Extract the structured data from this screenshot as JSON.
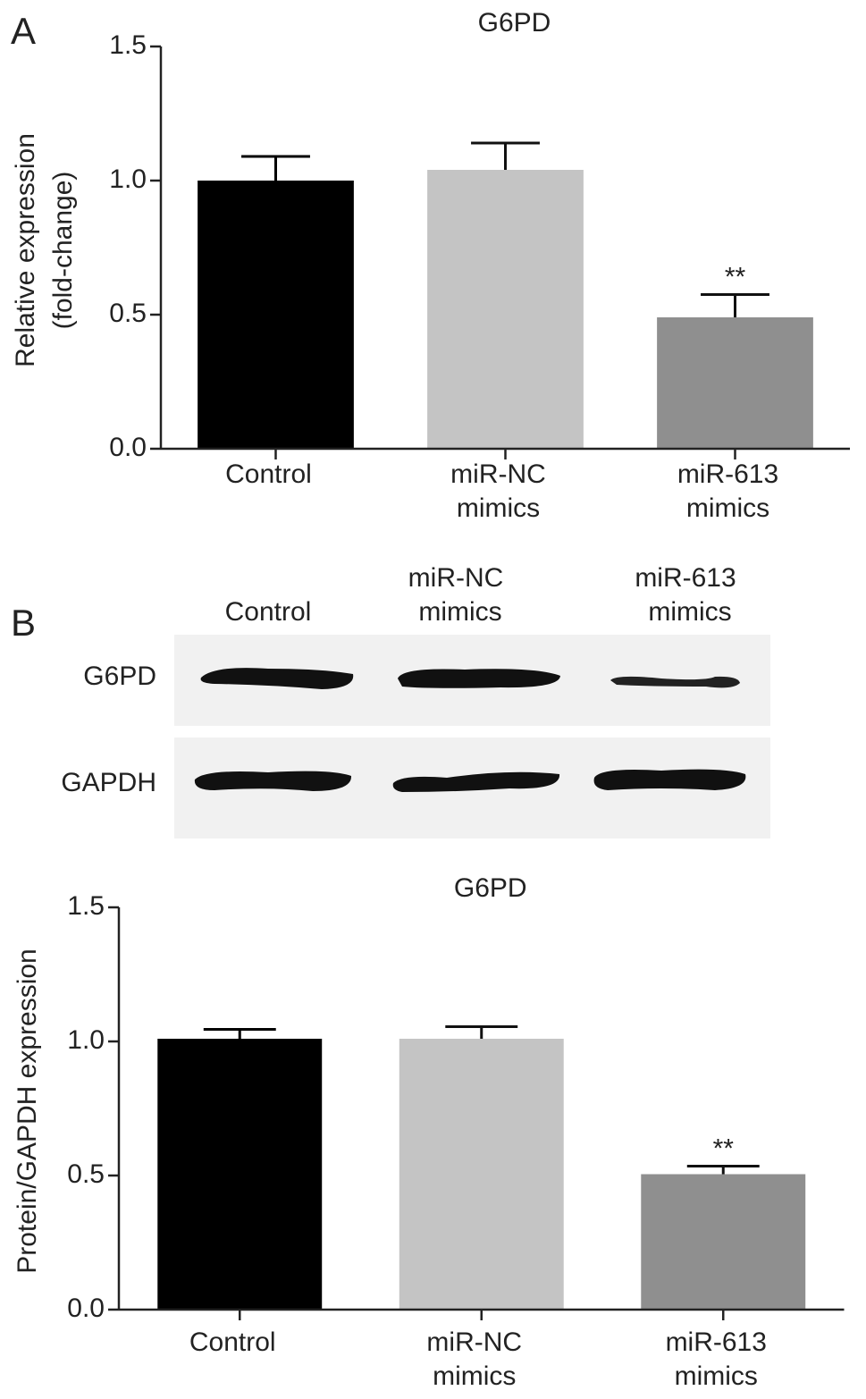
{
  "chart_data": [
    {
      "type": "bar",
      "panel_label": "A",
      "title": "G6PD",
      "ylabel": [
        "Relative expression",
        "(fold-change)"
      ],
      "categories": [
        [
          "Control"
        ],
        [
          "miR-NC",
          "mimics"
        ],
        [
          "miR-613",
          "mimics"
        ]
      ],
      "values": [
        1.0,
        1.04,
        0.49
      ],
      "errors": [
        0.09,
        0.1,
        0.085
      ],
      "colors": [
        "#000000",
        "#c4c4c4",
        "#8f8f8f"
      ],
      "annotations": [
        null,
        null,
        "**"
      ],
      "ylim": [
        0,
        1.5
      ],
      "yticks": [
        {
          "value": 0,
          "label": "0.0"
        },
        0.5,
        {
          "value": 1,
          "label": "1.0"
        },
        1.5
      ]
    },
    {
      "type": "bar",
      "title": "G6PD",
      "ylabel": [
        "Protein/GAPDH expression"
      ],
      "categories": [
        [
          "Control"
        ],
        [
          "miR-NC",
          "mimics"
        ],
        [
          "miR-613",
          "mimics"
        ]
      ],
      "values": [
        1.01,
        1.01,
        0.505
      ],
      "errors": [
        0.035,
        0.045,
        0.03
      ],
      "colors": [
        "#000000",
        "#c4c4c4",
        "#8f8f8f"
      ],
      "annotations": [
        null,
        null,
        "**"
      ],
      "ylim": [
        0,
        1.5
      ],
      "yticks": [
        {
          "value": 0,
          "label": "0.0"
        },
        0.5,
        {
          "value": 1,
          "label": "1.0"
        },
        1.5
      ]
    }
  ],
  "blot": {
    "panel_label": "B",
    "lanes": [
      [
        "Control"
      ],
      [
        "miR-NC",
        "mimics"
      ],
      [
        "miR-613",
        "mimics"
      ]
    ],
    "rows": [
      "G6PD",
      "GAPDH"
    ]
  }
}
